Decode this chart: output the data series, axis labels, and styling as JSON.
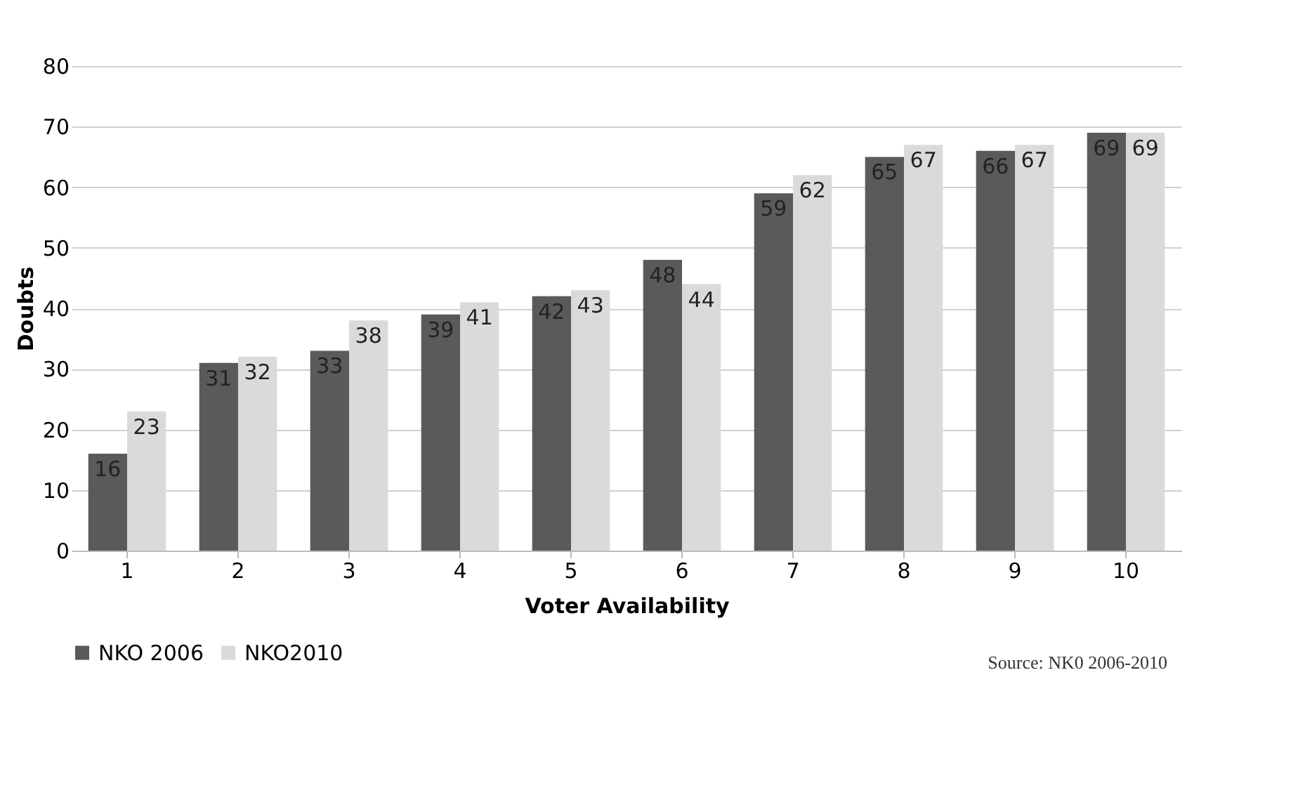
{
  "chart_data": {
    "type": "bar",
    "xlabel": "Voter Availability",
    "ylabel": "Doubts",
    "categories": [
      "1",
      "2",
      "3",
      "4",
      "5",
      "6",
      "7",
      "8",
      "9",
      "10"
    ],
    "series": [
      {
        "name": "NKO 2006",
        "color": "#5a5a5a",
        "values": [
          16,
          31,
          33,
          39,
          42,
          48,
          59,
          65,
          66,
          69
        ]
      },
      {
        "name": "NKO2010",
        "color": "#dadada",
        "values": [
          23,
          32,
          38,
          41,
          43,
          44,
          62,
          67,
          67,
          69
        ]
      }
    ],
    "ylim": [
      0,
      80
    ],
    "yticks": [
      0,
      10,
      20,
      30,
      40,
      50,
      60,
      70,
      80
    ],
    "grid": "y",
    "legend": "bottom",
    "data_labels": true,
    "annotations": [
      "Source: NK0 2006-2010"
    ]
  }
}
